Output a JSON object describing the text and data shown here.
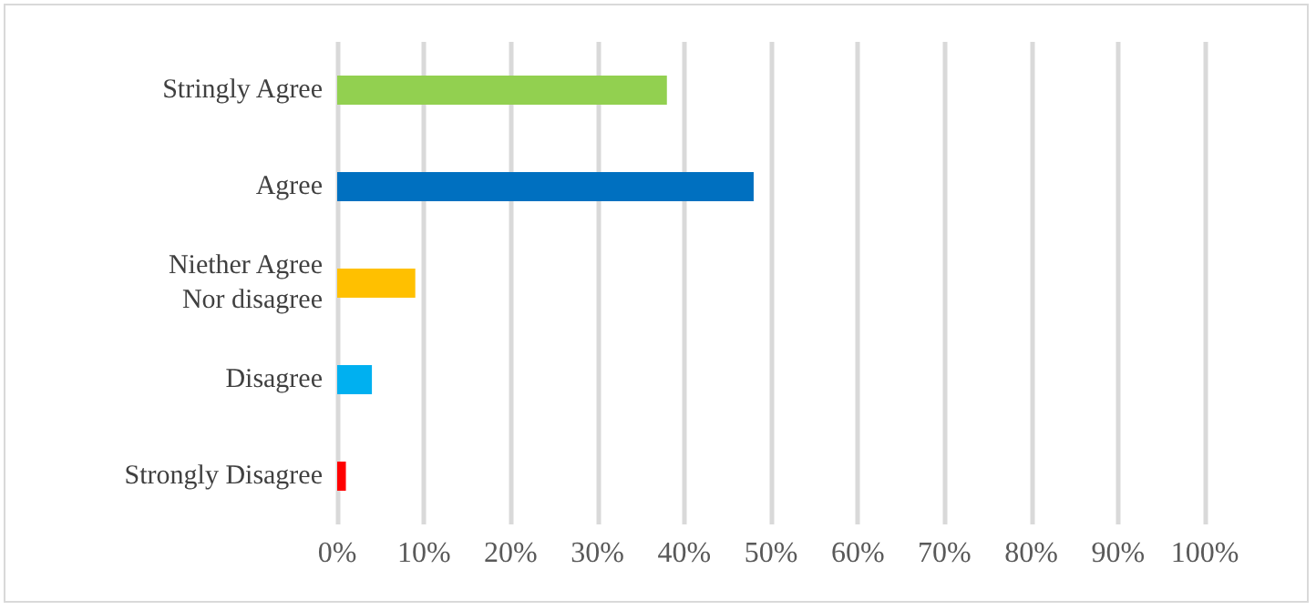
{
  "chart_data": {
    "type": "bar",
    "orientation": "horizontal",
    "categories": [
      "Stringly Agree",
      "Agree",
      "Niether Agree\nNor disagree",
      "Disagree",
      "Strongly Disagree"
    ],
    "values": [
      38,
      48,
      9,
      4,
      1
    ],
    "colors": [
      "#92d050",
      "#0070c0",
      "#ffc000",
      "#00b0f0",
      "#ff0000"
    ],
    "xlim": [
      0,
      100
    ],
    "xticks": [
      {
        "value": 0,
        "label": "0%"
      },
      {
        "value": 10,
        "label": "10%"
      },
      {
        "value": 20,
        "label": "20%"
      },
      {
        "value": 30,
        "label": "30%"
      },
      {
        "value": 40,
        "label": "40%"
      },
      {
        "value": 50,
        "label": "50%"
      },
      {
        "value": 60,
        "label": "60%"
      },
      {
        "value": 70,
        "label": "70%"
      },
      {
        "value": 80,
        "label": "80%"
      },
      {
        "value": 90,
        "label": "90%"
      },
      {
        "value": 100,
        "label": "100%"
      }
    ],
    "grid": "x"
  }
}
